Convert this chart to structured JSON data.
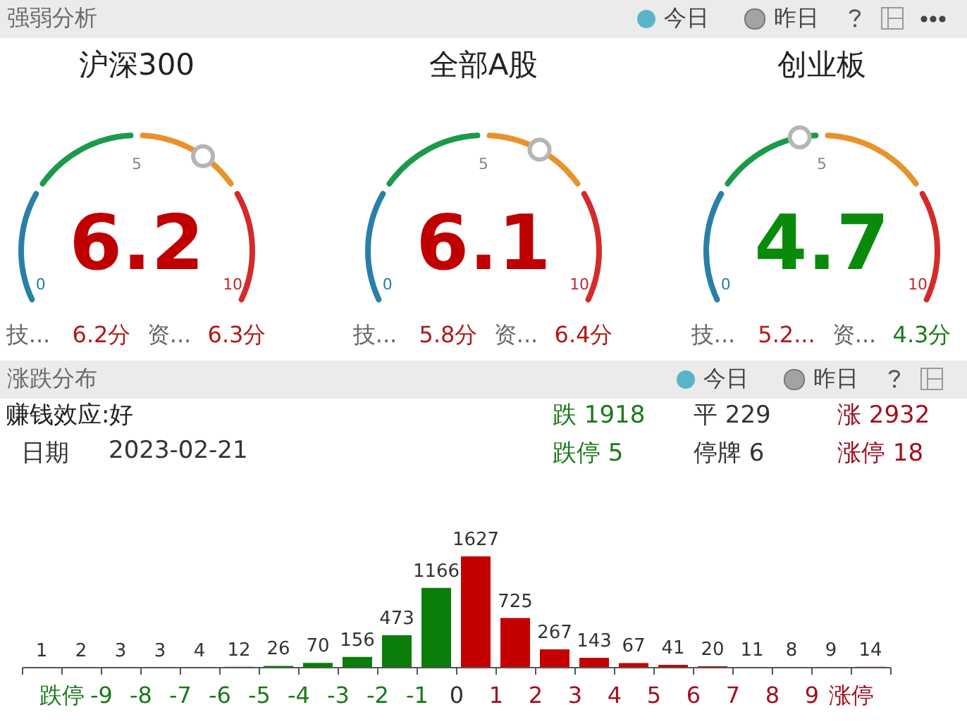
{
  "chart_data": [
    {
      "type": "other",
      "title": "强弱分析",
      "series": [
        {
          "name": "今日",
          "color": "#5ab4c8"
        },
        {
          "name": "昨日",
          "color": "#a3a3a3"
        }
      ],
      "legend": "top right"
    },
    {
      "type": "other",
      "title": "沪深300",
      "annotations": [
        "0",
        "5",
        "10",
        "6.2",
        "技...",
        "6.2分",
        "资...",
        "6.3分"
      ]
    },
    {
      "type": "other",
      "title": "全部A股",
      "annotations": [
        "0",
        "5",
        "10",
        "6.1",
        "技...",
        "5.8分",
        "资...",
        "6.4分"
      ]
    },
    {
      "type": "other",
      "title": "创业板",
      "annotations": [
        "0",
        "5",
        "10",
        "4.7",
        "技...",
        "5.2...",
        "资...",
        "4.3分"
      ]
    },
    {
      "type": "other",
      "title": "涨跌分布",
      "series": [
        {
          "name": "今日",
          "color": "#5ab4c8"
        },
        {
          "name": "昨日",
          "color": "#a3a3a3"
        }
      ],
      "legend": "top right"
    },
    {
      "type": "other",
      "annotations": [
        "赚钱效应:好",
        "日期",
        "2023-02-21",
        "跌 1918",
        "平 229",
        "涨 2932",
        "跌停 5",
        "停牌 6",
        "涨停 18"
      ],
      "colors": [
        "#222222",
        "#333333",
        "#333333",
        "#1a7a1a",
        "#333333",
        "#a01020",
        "#1a7a1a",
        "#333333",
        "#a01020"
      ]
    },
    {
      "type": "bar",
      "x": [
        -10.5,
        -9.5,
        -8.5,
        -7.5,
        -6.5,
        -5.5,
        -4.5,
        -3.5,
        -2.5,
        -1.5,
        -0.5,
        0.5,
        1.5,
        2.5,
        3.5,
        4.5,
        5.5,
        6.5,
        7.5,
        8.5,
        9.5,
        10.5
      ],
      "values": [
        1,
        2,
        3,
        3,
        4,
        12,
        26,
        70,
        156,
        473,
        1166,
        1627,
        725,
        267,
        143,
        67,
        41,
        20,
        11,
        8,
        9,
        14
      ],
      "colors": [
        "#0a7d0a",
        "#0a7d0a",
        "#0a7d0a",
        "#0a7d0a",
        "#0a7d0a",
        "#0a7d0a",
        "#0a7d0a",
        "#0a7d0a",
        "#0a7d0a",
        "#0a7d0a",
        "#0a7d0a",
        "#c40000",
        "#c40000",
        "#c40000",
        "#c40000",
        "#c40000",
        "#c40000",
        "#c40000",
        "#c40000",
        "#c40000",
        "#c40000",
        "#c40000"
      ],
      "xlim": [
        -11,
        11
      ],
      "xticks": [
        {
          "value": -11,
          "label": null
        },
        {
          "value": -10,
          "label": "跌停"
        },
        -9,
        -8,
        -7,
        -6,
        -5,
        -4,
        -3,
        -2,
        -1,
        0,
        1,
        2,
        3,
        4,
        5,
        6,
        7,
        8,
        9,
        {
          "value": 10,
          "label": "涨停"
        },
        {
          "value": 11,
          "label": null
        }
      ],
      "data_labels": true,
      "tick_labels": "x"
    }
  ]
}
